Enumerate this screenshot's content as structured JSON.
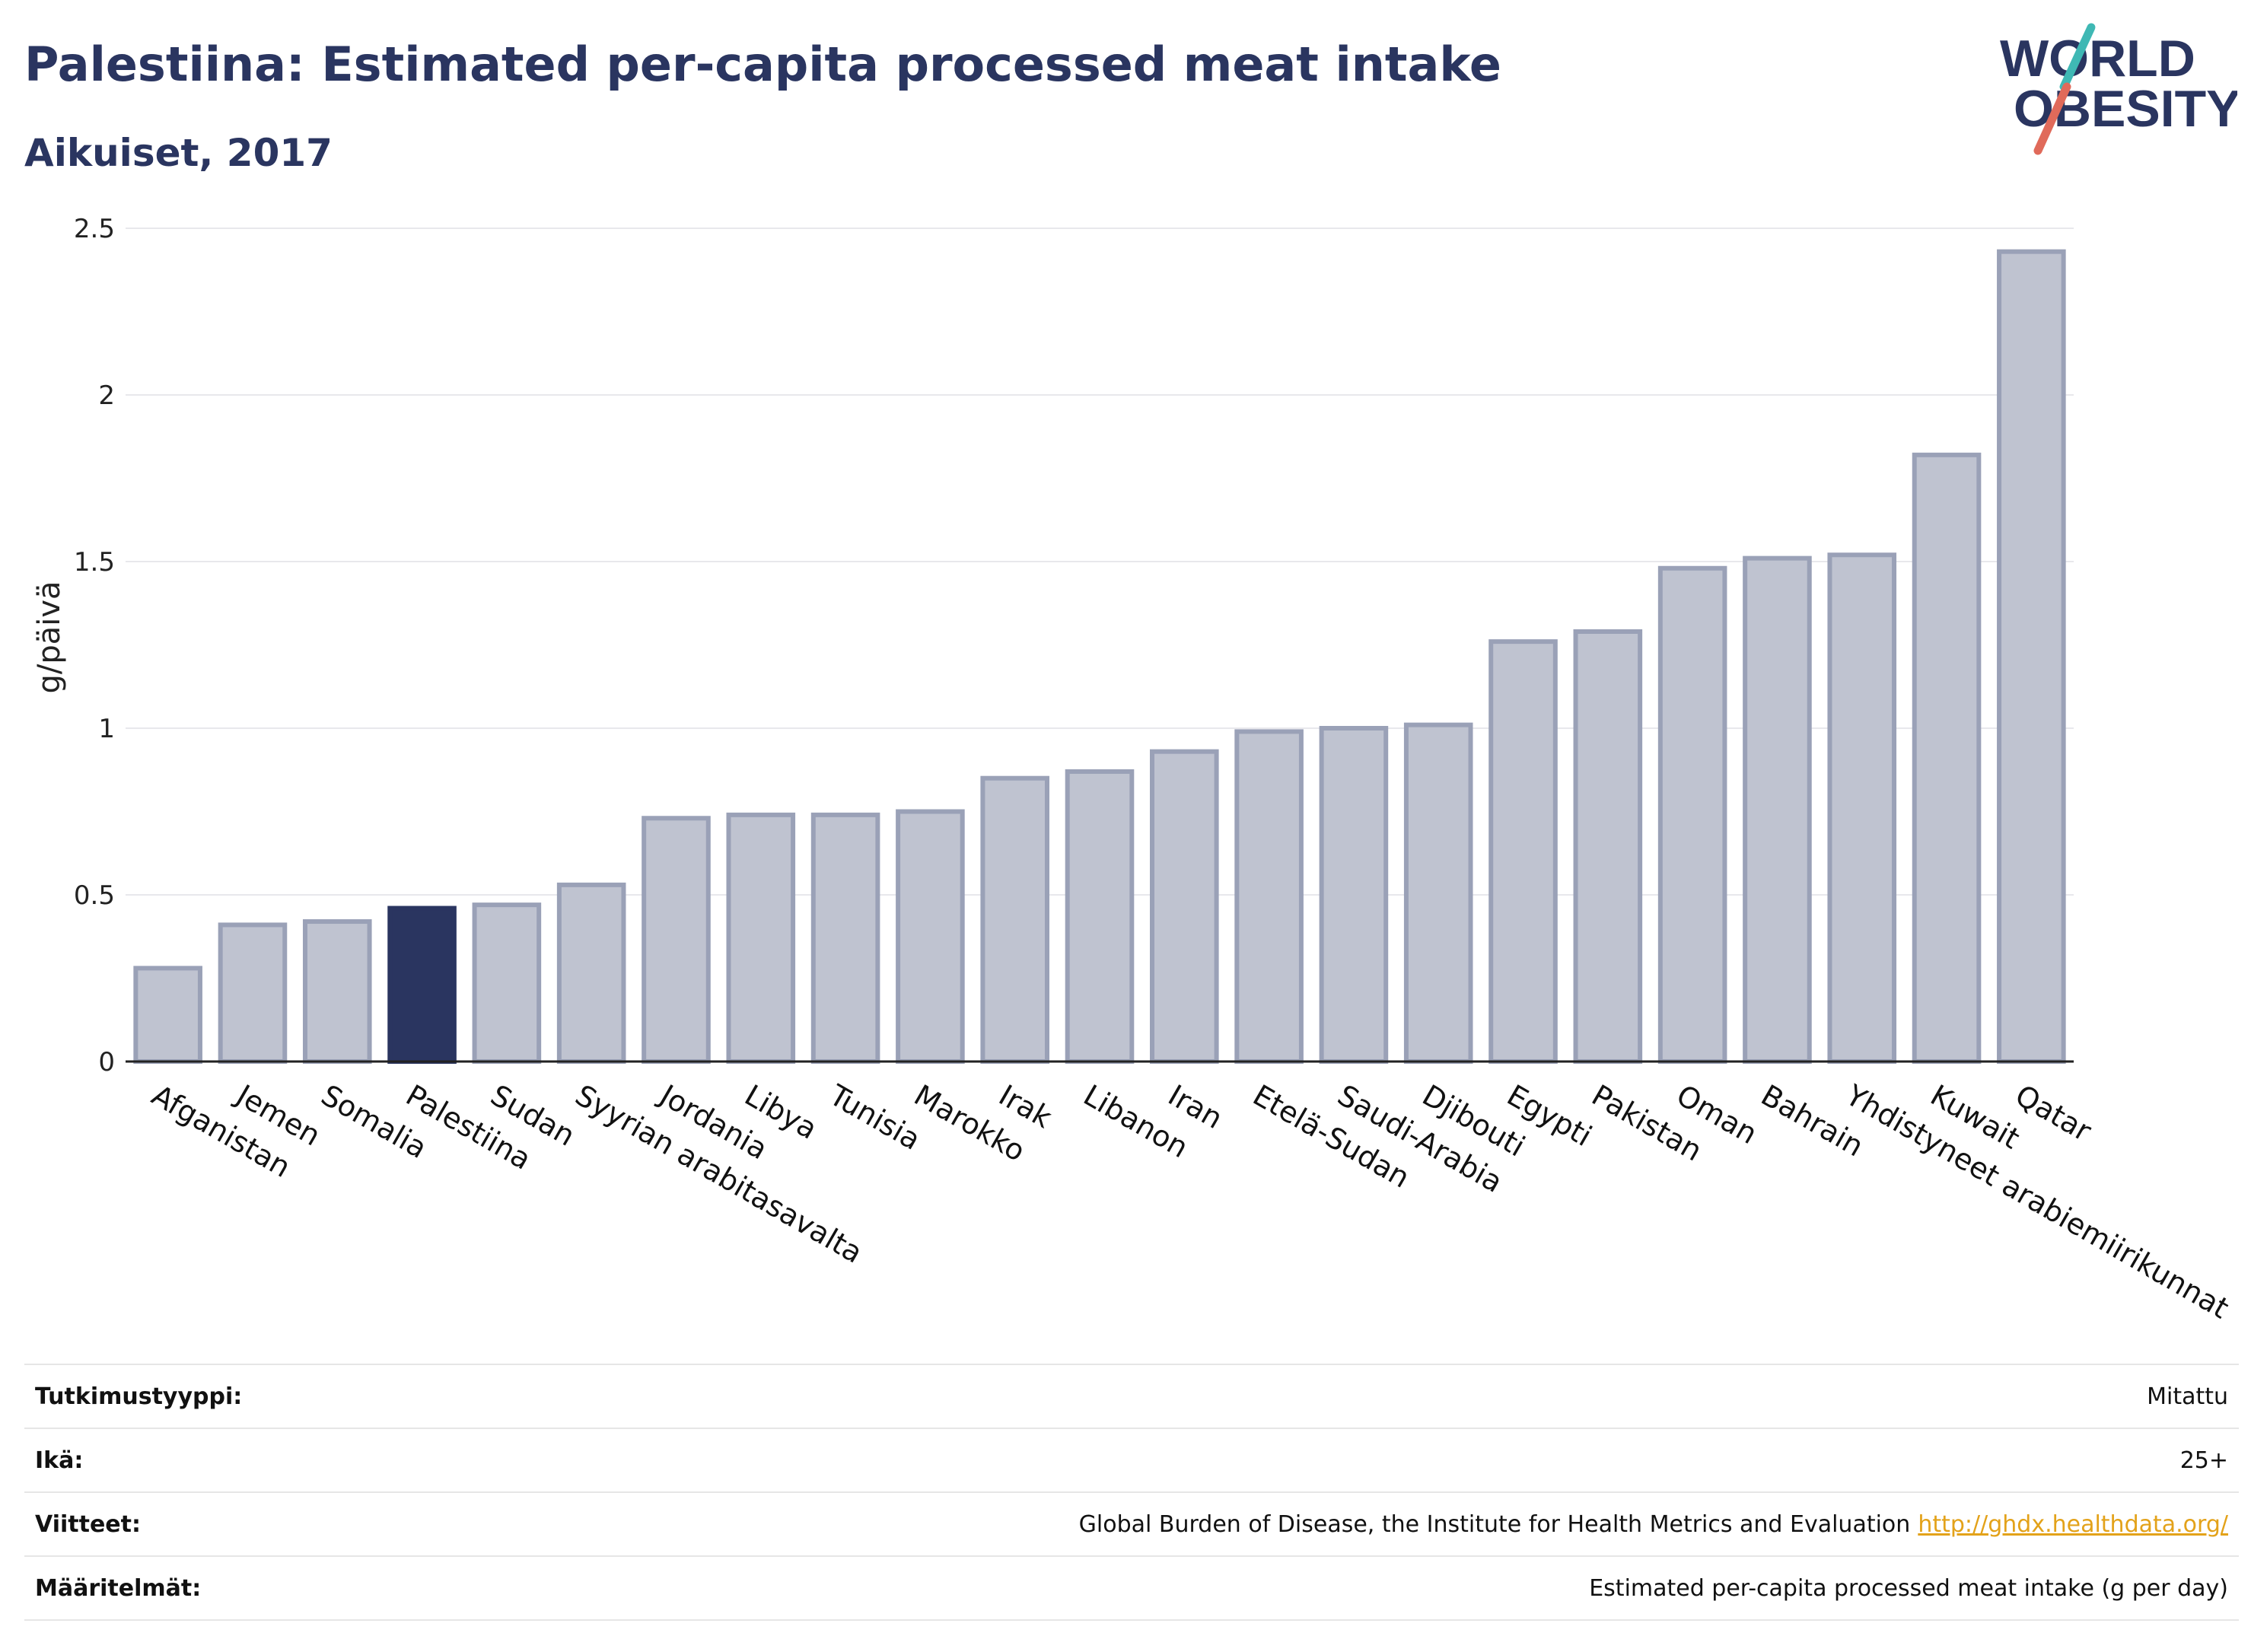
{
  "header": {
    "title": "Palestiina: Estimated per-capita processed meat intake",
    "subtitle": "Aikuiset, 2017"
  },
  "logo": {
    "line1": "WORLD",
    "line2": "OBESITY"
  },
  "colors": {
    "brand": "#2a3560",
    "highlight_bar": "#2a3560",
    "bar_fill": "#bfc3d0",
    "bar_stroke": "#9aa1b7",
    "logo_slash_teal": "#3fb8b4",
    "logo_slash_red": "#e06a5a",
    "link": "#e3a21a"
  },
  "chart_data": {
    "type": "bar",
    "ylabel": "g/päivä",
    "xlabel": "",
    "ylim": [
      0,
      2.5
    ],
    "yticks": [
      0,
      0.5,
      1,
      1.5,
      2,
      2.5
    ],
    "ytick_labels": [
      "0",
      "0.5",
      "1",
      "1.5",
      "2",
      "2.5"
    ],
    "grid": true,
    "highlight": "Palestiina",
    "categories": [
      "Afganistan",
      "Jemen",
      "Somalia",
      "Palestiina",
      "Sudan",
      "Syyrian arabitasavalta",
      "Jordania",
      "Libya",
      "Tunisia",
      "Marokko",
      "Irak",
      "Libanon",
      "Iran",
      "Etelä-Sudan",
      "Saudi-Arabia",
      "Djibouti",
      "Egypti",
      "Pakistan",
      "Oman",
      "Bahrain",
      "Yhdistyneet arabiemiirikunnat",
      "Kuwait",
      "Qatar"
    ],
    "values": [
      0.28,
      0.41,
      0.42,
      0.46,
      0.47,
      0.53,
      0.73,
      0.74,
      0.74,
      0.75,
      0.85,
      0.87,
      0.93,
      0.99,
      1.0,
      1.01,
      1.26,
      1.29,
      1.48,
      1.51,
      1.52,
      1.82,
      2.43
    ]
  },
  "info": {
    "rows": [
      {
        "label": "Tutkimustyyppi:",
        "value": "Mitattu"
      },
      {
        "label": "Ikä:",
        "value": "25+"
      },
      {
        "label": "Viitteet:",
        "value": "Global Burden of Disease, the Institute for Health Metrics and Evaluation",
        "link": "http://ghdx.healthdata.org/"
      },
      {
        "label": "Määritelmät:",
        "value": "Estimated per-capita processed meat intake (g per day)"
      }
    ]
  }
}
